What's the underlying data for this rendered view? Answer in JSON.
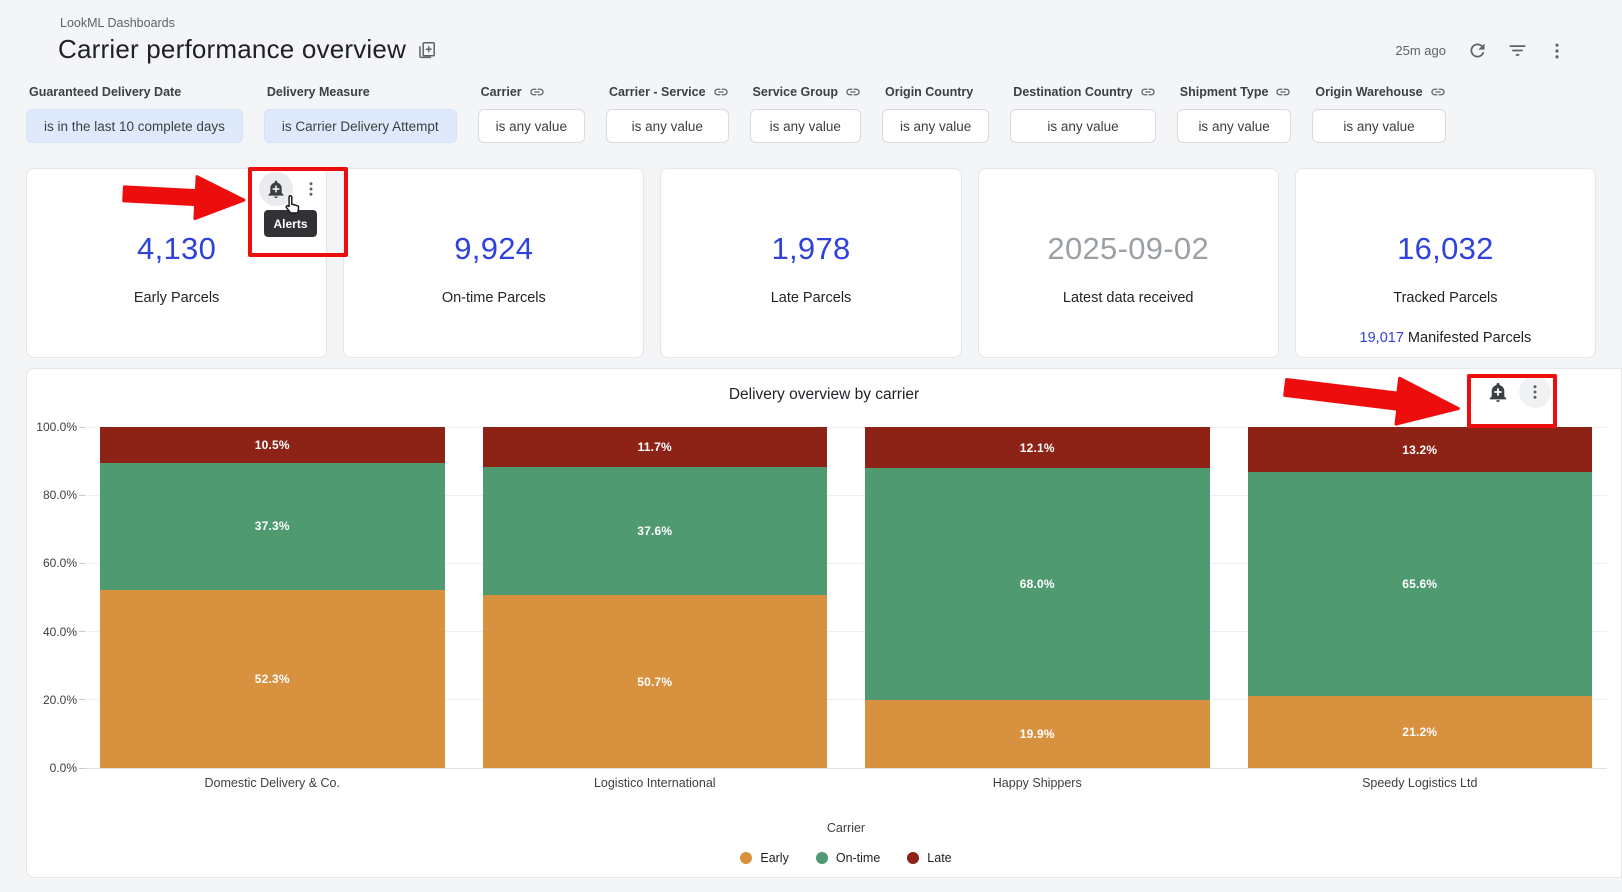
{
  "header": {
    "breadcrumb": "LookML Dashboards",
    "title": "Carrier performance overview",
    "updated": "25m ago"
  },
  "icons": {
    "title_icon": "library-add-icon",
    "header_icons": [
      "refresh-icon",
      "filter-list-icon",
      "kebab-menu-icon"
    ],
    "tile_icons": [
      "alert-bell-plus-icon",
      "kebab-menu-icon"
    ],
    "filter_link_icon": "link-icon",
    "cursor": "hand-pointer-cursor"
  },
  "tooltip": {
    "label": "Alerts"
  },
  "colors": {
    "kpi_blue": "#2f42dc",
    "kpi_gray": "#9aa0a6",
    "annotation_red": "#ee0d0d",
    "chip_active_bg": "#dee9fb"
  },
  "filters": [
    {
      "label": "Guaranteed Delivery Date",
      "value": "is in the last 10 complete days",
      "linked": false,
      "active": true
    },
    {
      "label": "Delivery Measure",
      "value": "is Carrier Delivery Attempt",
      "linked": false,
      "active": true
    },
    {
      "label": "Carrier",
      "value": "is any value",
      "linked": true,
      "active": false
    },
    {
      "label": "Carrier - Service",
      "value": "is any value",
      "linked": true,
      "active": false
    },
    {
      "label": "Service Group",
      "value": "is any value",
      "linked": true,
      "active": false
    },
    {
      "label": "Origin Country",
      "value": "is any value",
      "linked": false,
      "active": false
    },
    {
      "label": "Destination Country",
      "value": "is any value",
      "linked": true,
      "active": false
    },
    {
      "label": "Shipment Type",
      "value": "is any value",
      "linked": true,
      "active": false
    },
    {
      "label": "Origin Warehouse",
      "value": "is any value",
      "linked": true,
      "active": false
    }
  ],
  "kpis": [
    {
      "value": "4,130",
      "label": "Early Parcels",
      "color_role": "kpi_blue",
      "has_hover_icons": true
    },
    {
      "value": "9,924",
      "label": "On-time Parcels",
      "color_role": "kpi_blue"
    },
    {
      "value": "1,978",
      "label": "Late Parcels",
      "color_role": "kpi_blue"
    },
    {
      "value": "2025-09-02",
      "label": "Latest data received",
      "color_role": "kpi_gray"
    },
    {
      "value": "16,032",
      "label": "Tracked Parcels",
      "color_role": "kpi_blue",
      "sub_value": "19,017",
      "sub_label": " Manifested Parcels"
    }
  ],
  "chart_data": {
    "type": "bar",
    "stacked": true,
    "title": "Delivery overview by carrier",
    "categories": [
      "Domestic Delivery & Co.",
      "Logistico International",
      "Happy Shippers",
      "Speedy Logistics Ltd"
    ],
    "series": [
      {
        "name": "Early",
        "color": "#d8913f",
        "values": [
          52.3,
          50.7,
          19.9,
          21.2
        ]
      },
      {
        "name": "On-time",
        "color": "#4f9a71",
        "values": [
          37.3,
          37.6,
          68.0,
          65.6
        ]
      },
      {
        "name": "Late",
        "color": "#8c2316",
        "values": [
          10.5,
          11.7,
          12.1,
          13.2
        ]
      }
    ],
    "stack_order_top_to_bottom": [
      "Late",
      "On-time",
      "Early"
    ],
    "value_suffix": "%",
    "xlabel": "Carrier",
    "ylabel": "",
    "ylim": [
      0,
      100
    ],
    "y_ticks": [
      "100.0%",
      "80.0%",
      "60.0%",
      "40.0%",
      "20.0%",
      "0.0%"
    ],
    "grid": true,
    "legend_position": "bottom"
  }
}
